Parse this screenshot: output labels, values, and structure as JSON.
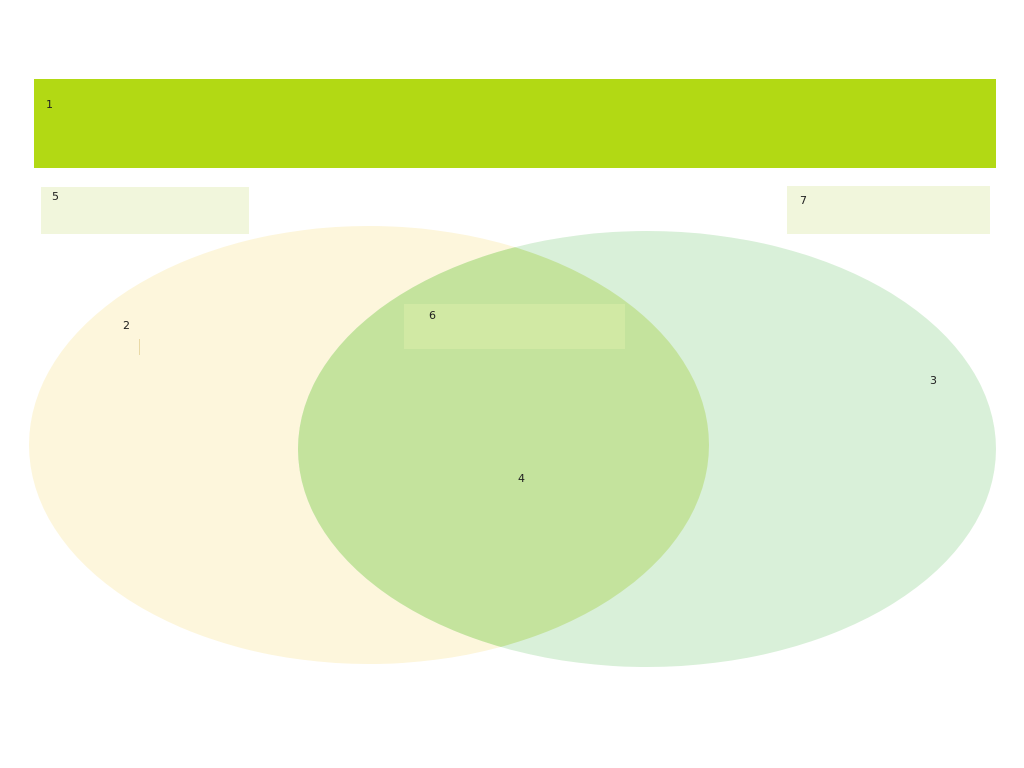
{
  "header": {
    "label": "1",
    "color": "#b2d914"
  },
  "venn": {
    "set_a": {
      "label": "2",
      "color": "#fdf6dc"
    },
    "set_b": {
      "label": "3",
      "color": "#d9f0d9"
    },
    "overlap": {
      "label": "4",
      "color": "#c4e39d"
    }
  },
  "boxes": {
    "left": {
      "label": "5",
      "color": "#f1f6dc"
    },
    "center": {
      "label": "6"
    },
    "right": {
      "label": "7",
      "color": "#f1f6dc"
    }
  }
}
